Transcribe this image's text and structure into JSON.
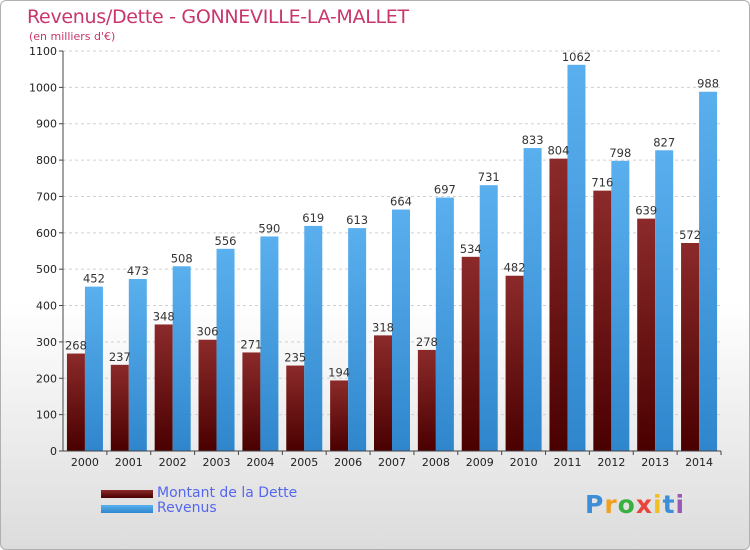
{
  "logo": {
    "letters": [
      "P",
      "r",
      "o",
      "x",
      "i",
      "t",
      "i"
    ]
  },
  "chart_data": {
    "type": "bar",
    "title": "Revenus/Dette - GONNEVILLE-LA-MALLET",
    "subtitle": "(en milliers d'€)",
    "categories": [
      "2000",
      "2001",
      "2002",
      "2003",
      "2004",
      "2005",
      "2006",
      "2007",
      "2008",
      "2009",
      "2010",
      "2011",
      "2012",
      "2013",
      "2014"
    ],
    "series": [
      {
        "name": "Montant de la Dette",
        "color": "#7a1a1a",
        "values": [
          268,
          237,
          348,
          306,
          271,
          235,
          194,
          318,
          278,
          534,
          482,
          804,
          716,
          639,
          572
        ]
      },
      {
        "name": "Revenus",
        "color": "#4ea8e8",
        "values": [
          452,
          473,
          508,
          556,
          590,
          619,
          613,
          664,
          697,
          731,
          833,
          1062,
          798,
          827,
          988
        ]
      }
    ],
    "ylim": [
      0,
      1100
    ],
    "yticks": [
      0,
      100,
      200,
      300,
      400,
      500,
      600,
      700,
      800,
      900,
      1000,
      1100
    ],
    "grid": true,
    "legend": "bottom-left"
  }
}
